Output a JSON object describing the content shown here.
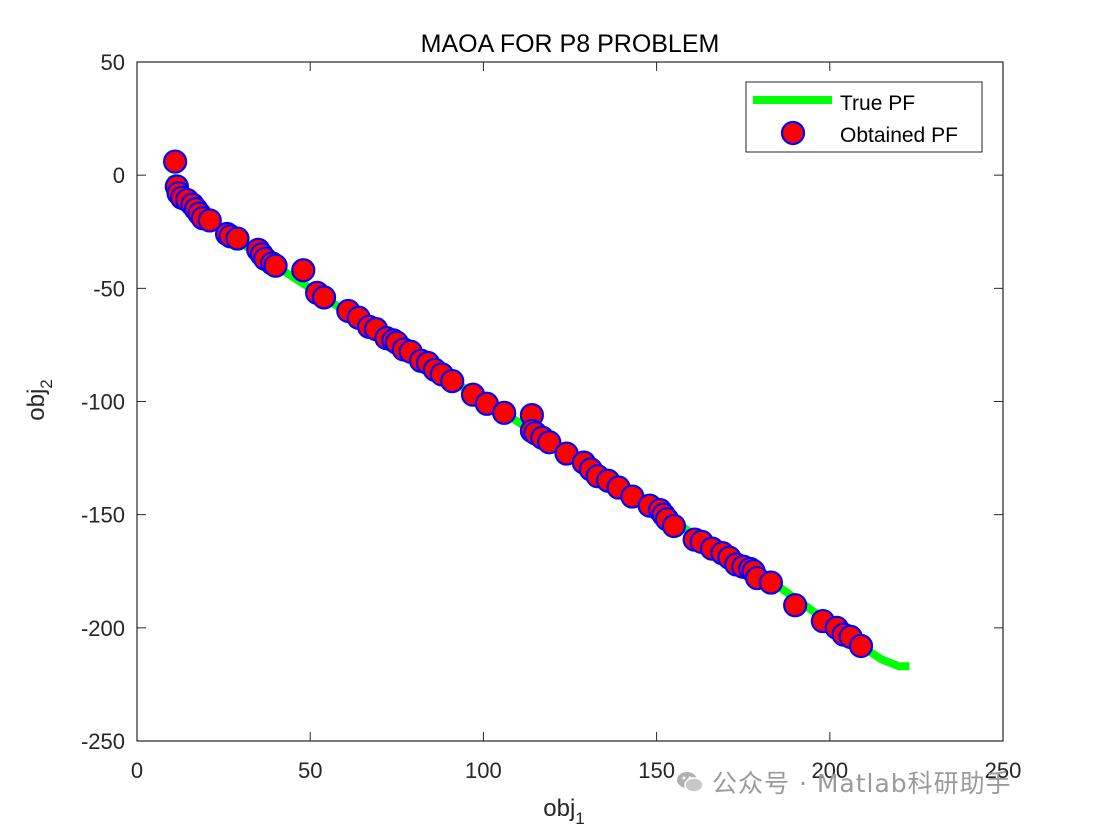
{
  "chart_data": {
    "type": "scatter",
    "title": "MAOA FOR P8 PROBLEM",
    "xlabel_base": "obj",
    "xlabel_sub": "1",
    "ylabel_base": "obj",
    "ylabel_sub": "2",
    "xlim": [
      0,
      250
    ],
    "ylim": [
      -250,
      50
    ],
    "xticks": [
      0,
      50,
      100,
      150,
      200,
      250
    ],
    "yticks": [
      -250,
      -200,
      -150,
      -100,
      -50,
      0,
      50
    ],
    "xtick_labels": [
      "0",
      "50",
      "100",
      "150",
      "200",
      "250"
    ],
    "ytick_labels": [
      "-250",
      "-200",
      "-150",
      "-100",
      "-50",
      "0",
      "50"
    ],
    "grid": false,
    "legend_position": "top-right",
    "series": [
      {
        "name": "True PF",
        "kind": "line",
        "color": "#00ff00",
        "x": [
          10,
          12,
          15,
          18,
          22,
          26,
          30,
          35,
          40,
          45,
          50,
          60,
          70,
          80,
          90,
          100,
          110,
          120,
          130,
          140,
          150,
          160,
          170,
          180,
          190,
          200,
          205,
          210,
          215,
          220,
          223
        ],
        "y": [
          0,
          -7,
          -12,
          -17,
          -21,
          -26,
          -30,
          -35,
          -40,
          -45,
          -50,
          -60,
          -70,
          -80,
          -90,
          -99,
          -109,
          -119,
          -129,
          -139,
          -148,
          -158,
          -167,
          -176,
          -187,
          -198,
          -203,
          -209,
          -214,
          -217,
          -217
        ]
      },
      {
        "name": "Obtained PF",
        "kind": "marker",
        "face_color": "#ff0000",
        "edge_color": "#0000ff",
        "x": [
          11,
          11.5,
          12,
          13,
          14.5,
          16,
          17,
          18,
          19,
          21,
          26,
          27,
          29,
          35,
          36,
          37,
          39,
          40,
          48,
          52,
          54,
          61,
          64,
          67,
          69,
          72,
          74,
          75,
          77,
          79,
          82,
          84,
          86,
          88,
          91,
          97,
          101,
          106,
          114,
          114,
          115,
          117,
          119,
          124,
          129,
          131,
          133,
          136,
          139,
          143,
          148,
          151,
          152,
          153,
          155,
          161,
          163,
          166,
          169,
          171,
          173,
          175,
          177,
          178,
          179,
          183,
          190,
          198,
          202,
          204,
          206,
          209
        ],
        "y": [
          6,
          -5,
          -8,
          -10,
          -11,
          -13,
          -15,
          -17,
          -19,
          -20,
          -26,
          -27,
          -28,
          -33,
          -35,
          -37,
          -39,
          -40,
          -42,
          -52,
          -54,
          -60,
          -63,
          -67,
          -68,
          -72,
          -73,
          -74,
          -77,
          -78,
          -82,
          -83,
          -86,
          -88,
          -91,
          -97,
          -101,
          -105,
          -106,
          -113,
          -114,
          -116,
          -118,
          -123,
          -127,
          -130,
          -133,
          -135,
          -138,
          -142,
          -146,
          -148,
          -150,
          -152,
          -155,
          -161,
          -162,
          -165,
          -167,
          -169,
          -172,
          -173,
          -174,
          -175,
          -178,
          -180,
          -190,
          -197,
          -200,
          -203,
          -204,
          -208
        ]
      }
    ]
  },
  "watermark": {
    "icon": "wechat-icon",
    "text": "公众号 · Matlab科研助手"
  }
}
